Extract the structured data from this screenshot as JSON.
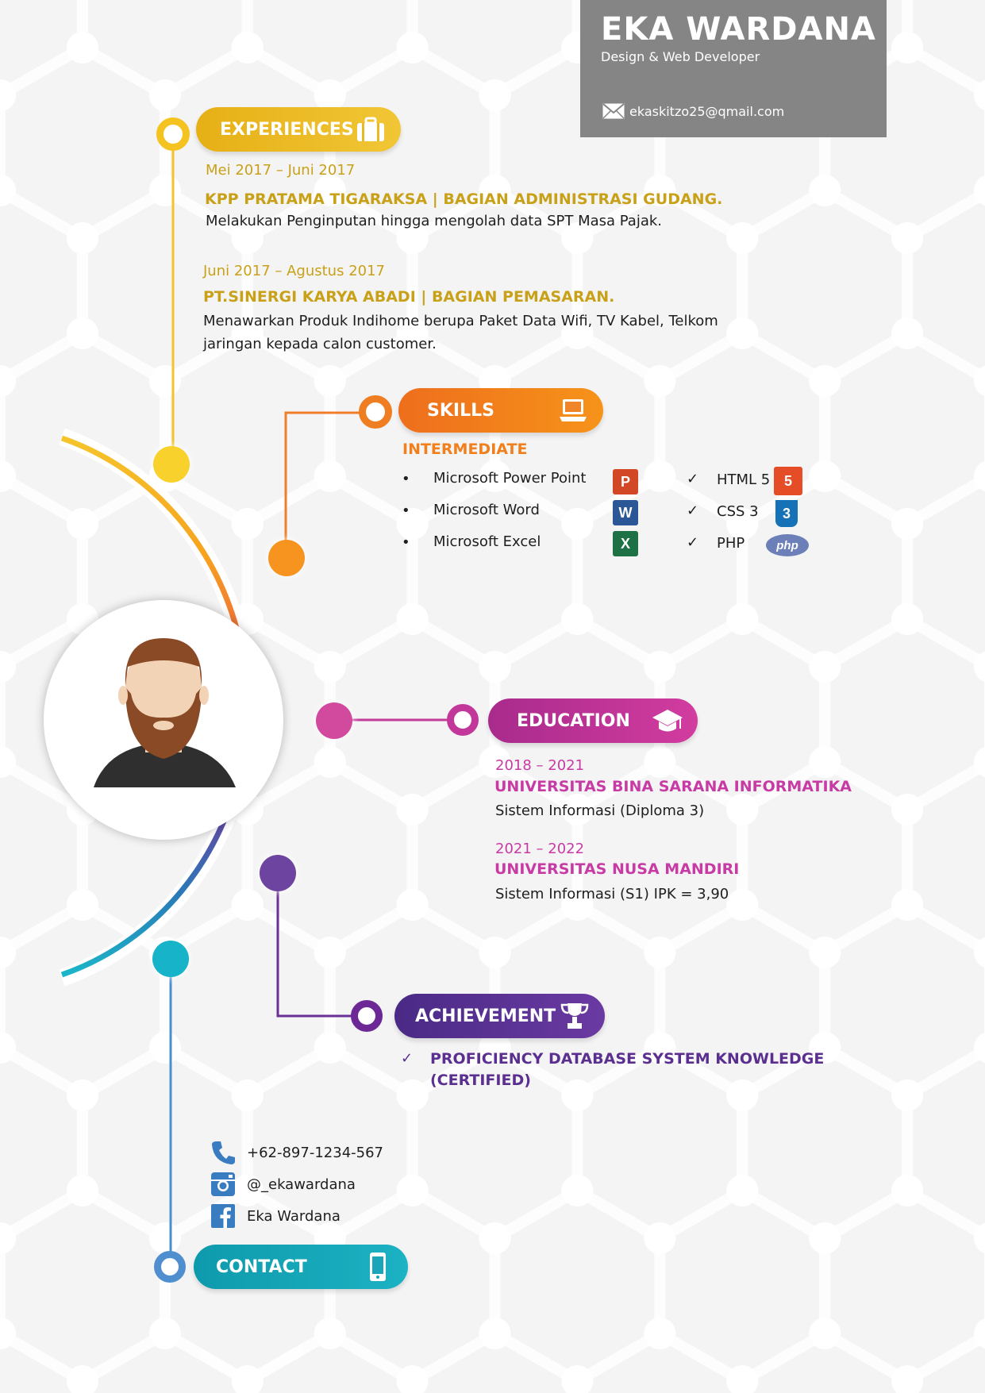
{
  "header": {
    "name": "EKA WARDANA",
    "role": "Design & Web Developer",
    "email": "ekaskitzo25@qmail.com",
    "email_icon": "envelope-icon",
    "bg_color": "#858585"
  },
  "experiences": {
    "title": "EXPERIENCES",
    "icon": "briefcase-icon",
    "color": "#e8b81c",
    "items": [
      {
        "date": "Mei 2017 – Juni 2017",
        "org": "KPP PRATAMA TIGARAKSA | BAGIAN ADMINISTRASI GUDANG.",
        "desc": "Melakukan Penginputan hingga mengolah data SPT Masa Pajak."
      },
      {
        "date": "Juni 2017 – Agustus 2017",
        "org": "PT.SINERGI KARYA ABADI |  BAGIAN PEMASARAN.",
        "desc_line1": "Menawarkan Produk Indihome berupa Paket Data Wifi, TV Kabel, Telkom",
        "desc_line2": "jaringan kepada calon customer."
      }
    ]
  },
  "skills": {
    "title": "SKILLS",
    "icon": "laptop-icon",
    "color": "#f07a1e",
    "level": "INTERMEDIATE",
    "office": [
      {
        "label": "Microsoft Power Point",
        "icon": "powerpoint-icon",
        "letter": "P"
      },
      {
        "label": "Microsoft Word",
        "icon": "word-icon",
        "letter": "W"
      },
      {
        "label": "Microsoft Excel",
        "icon": "excel-icon",
        "letter": "X"
      }
    ],
    "web": [
      {
        "label": "HTML 5",
        "icon": "html5-icon",
        "letter": "5"
      },
      {
        "label": "CSS 3",
        "icon": "css3-icon",
        "letter": "3"
      },
      {
        "label": "PHP",
        "icon": "php-icon",
        "letter": "php"
      }
    ],
    "bullet": "•",
    "check": "✓"
  },
  "education": {
    "title": "EDUCATION",
    "icon": "graduation-cap-icon",
    "color": "#c02f94",
    "items": [
      {
        "date": "2018 – 2021",
        "school": "UNIVERSITAS BINA SARANA INFORMATIKA",
        "desc": "Sistem Informasi (Diploma 3)"
      },
      {
        "date": "2021 – 2022",
        "school": "UNIVERSITAS NUSA MANDIRI",
        "desc": "Sistem Informasi (S1) IPK = 3,90"
      }
    ]
  },
  "achievement": {
    "title": "ACHIEVEMENT",
    "icon": "trophy-icon",
    "color": "#5a2c8c",
    "check": "✓",
    "line1": "PROFICIENCY DATABASE SYSTEM KNOWLEDGE",
    "line2": "(CERTIFIED)"
  },
  "contact": {
    "title": "CONTACT",
    "icon": "mobile-phone-icon",
    "color": "#1aa3b5",
    "phone": "+62-897-1234-567",
    "instagram": "@_ekawardana",
    "facebook": "Eka Wardana"
  },
  "avatar": "bearded-man-avatar"
}
